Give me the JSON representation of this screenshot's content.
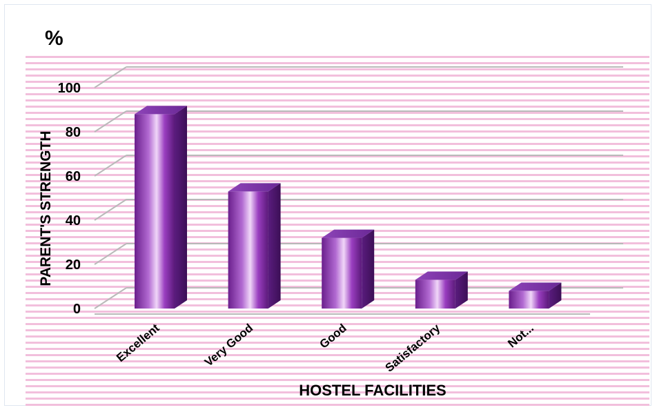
{
  "chart_data": {
    "type": "bar",
    "title": "",
    "unit_label": "%",
    "xlabel": "HOSTEL FACILITIES",
    "ylabel": "PARENT'S STRENGTH",
    "categories": [
      "Excellent",
      "Very Good",
      "Good",
      "Satisfactory",
      "Not..."
    ],
    "values": [
      88,
      53,
      32,
      13,
      8
    ],
    "ylim": [
      0,
      100
    ],
    "yticks": [
      0,
      20,
      40,
      60,
      80,
      100
    ],
    "grid": true,
    "legend": "none"
  },
  "colors": {
    "bar_dark": "#5b1a7a",
    "bar_mid": "#9a3ec0",
    "bar_light": "#e9c8f5",
    "bar_top": "#7a2fa0",
    "bar_side": "#4a1468",
    "stripe": "#f2bfdc",
    "gridline": "#b9b9b9"
  }
}
